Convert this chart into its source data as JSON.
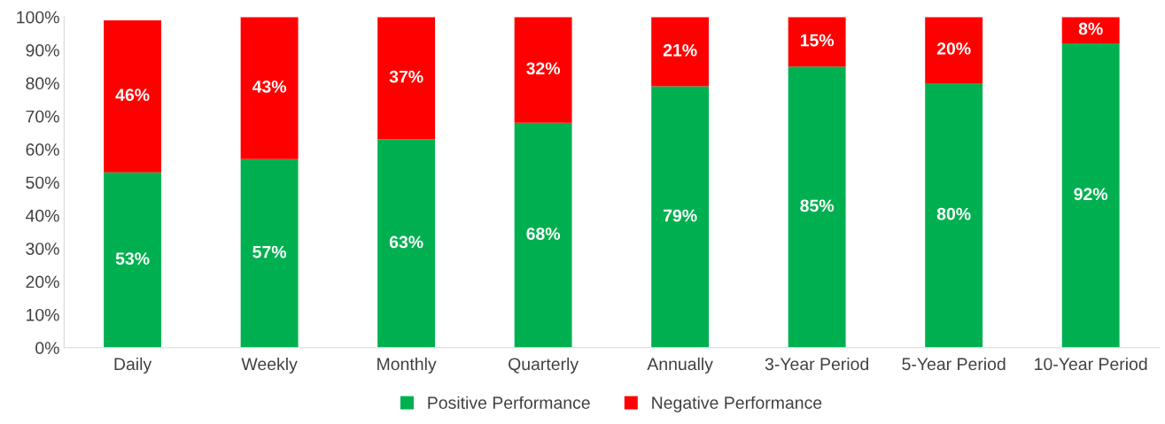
{
  "chart_data": {
    "type": "bar",
    "stacked": true,
    "categories": [
      "Daily",
      "Weekly",
      "Monthly",
      "Quarterly",
      "Annually",
      "3-Year Period",
      "5-Year Period",
      "10-Year Period"
    ],
    "series": [
      {
        "name": "Positive Performance",
        "color": "#00b050",
        "values": [
          53,
          57,
          63,
          68,
          79,
          85,
          80,
          92
        ],
        "value_labels": [
          "53%",
          "57%",
          "63%",
          "68%",
          "79%",
          "85%",
          "80%",
          "92%"
        ]
      },
      {
        "name": "Negative Performance",
        "color": "#ff0000",
        "values": [
          46,
          43,
          37,
          32,
          21,
          15,
          20,
          8
        ],
        "value_labels": [
          "46%",
          "43%",
          "37%",
          "32%",
          "21%",
          "15%",
          "20%",
          "8%"
        ]
      }
    ],
    "ylim": [
      0,
      100
    ],
    "yticks": [
      {
        "value": 0,
        "label": "0%"
      },
      {
        "value": 10,
        "label": "10%"
      },
      {
        "value": 20,
        "label": "20%"
      },
      {
        "value": 30,
        "label": "30%"
      },
      {
        "value": 40,
        "label": "40%"
      },
      {
        "value": 50,
        "label": "50%"
      },
      {
        "value": 60,
        "label": "60%"
      },
      {
        "value": 70,
        "label": "70%"
      },
      {
        "value": 80,
        "label": "80%"
      },
      {
        "value": 90,
        "label": "90%"
      },
      {
        "value": 100,
        "label": "100%"
      }
    ],
    "legend": "bottom"
  }
}
